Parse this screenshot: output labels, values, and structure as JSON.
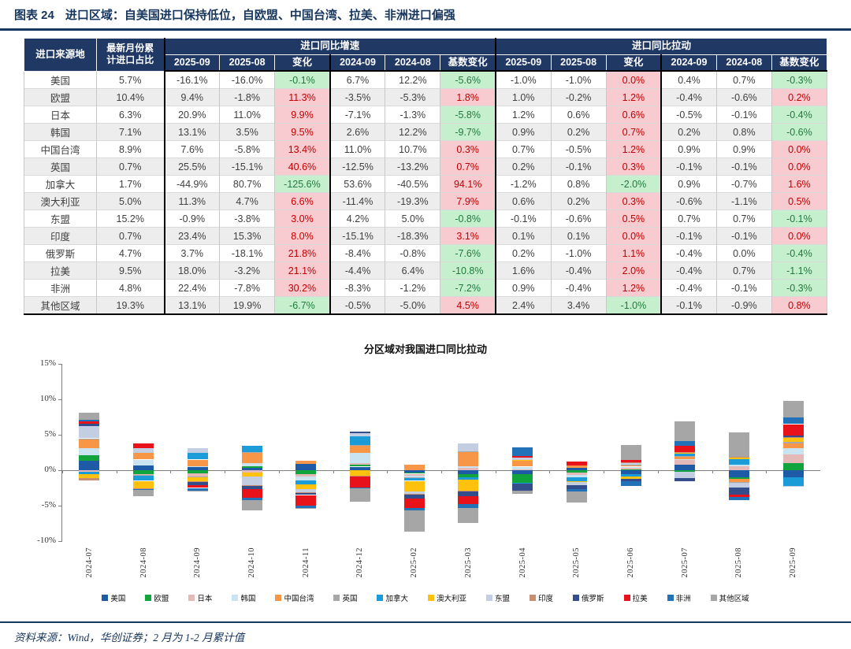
{
  "title": {
    "label": "图表 24",
    "text": "进口区域：自美国进口保持低位，自欧盟、中国台湾、拉美、非洲进口偏强"
  },
  "table": {
    "col_region": "进口来源地",
    "col_share": "最新月份累\n计进口占比",
    "group_growth": "进口同比增速",
    "group_pull": "进口同比拉动",
    "sub_headers": [
      "2025-09",
      "2025-08",
      "变化",
      "2024-09",
      "2024-08",
      "基数变化"
    ],
    "rows": [
      {
        "name": "美国",
        "share": "5.7%",
        "growth": [
          "-16.1%",
          "-16.0%",
          "-0.1%",
          "6.7%",
          "12.2%",
          "-5.6%"
        ],
        "pull": [
          "-1.0%",
          "-1.0%",
          "0.0%",
          "0.4%",
          "0.7%",
          "-0.3%"
        ]
      },
      {
        "name": "欧盟",
        "share": "10.4%",
        "growth": [
          "9.4%",
          "-1.8%",
          "11.3%",
          "-3.5%",
          "-5.3%",
          "1.8%"
        ],
        "pull": [
          "1.0%",
          "-0.2%",
          "1.2%",
          "-0.4%",
          "-0.6%",
          "0.2%"
        ]
      },
      {
        "name": "日本",
        "share": "6.3%",
        "growth": [
          "20.9%",
          "11.0%",
          "9.9%",
          "-7.1%",
          "-1.3%",
          "-5.8%"
        ],
        "pull": [
          "1.2%",
          "0.6%",
          "0.6%",
          "-0.5%",
          "-0.1%",
          "-0.4%"
        ]
      },
      {
        "name": "韩国",
        "share": "7.1%",
        "growth": [
          "13.1%",
          "3.5%",
          "9.5%",
          "2.6%",
          "12.2%",
          "-9.7%"
        ],
        "pull": [
          "0.9%",
          "0.2%",
          "0.7%",
          "0.2%",
          "0.8%",
          "-0.6%"
        ]
      },
      {
        "name": "中国台湾",
        "share": "8.9%",
        "growth": [
          "7.6%",
          "-5.8%",
          "13.4%",
          "11.0%",
          "10.7%",
          "0.3%"
        ],
        "pull": [
          "0.7%",
          "-0.5%",
          "1.2%",
          "0.9%",
          "0.9%",
          "0.0%"
        ]
      },
      {
        "name": "英国",
        "share": "0.7%",
        "growth": [
          "25.5%",
          "-15.1%",
          "40.6%",
          "-12.5%",
          "-13.2%",
          "0.7%"
        ],
        "pull": [
          "0.2%",
          "-0.1%",
          "0.3%",
          "-0.1%",
          "-0.1%",
          "0.0%"
        ]
      },
      {
        "name": "加拿大",
        "share": "1.7%",
        "growth": [
          "-44.9%",
          "80.7%",
          "-125.6%",
          "53.6%",
          "-40.5%",
          "94.1%"
        ],
        "pull": [
          "-1.2%",
          "0.8%",
          "-2.0%",
          "0.9%",
          "-0.7%",
          "1.6%"
        ]
      },
      {
        "name": "澳大利亚",
        "share": "5.0%",
        "growth": [
          "11.3%",
          "4.7%",
          "6.6%",
          "-11.4%",
          "-19.3%",
          "7.9%"
        ],
        "pull": [
          "0.6%",
          "0.2%",
          "0.3%",
          "-0.6%",
          "-1.1%",
          "0.5%"
        ]
      },
      {
        "name": "东盟",
        "share": "15.2%",
        "growth": [
          "-0.9%",
          "-3.8%",
          "3.0%",
          "4.2%",
          "5.0%",
          "-0.8%"
        ],
        "pull": [
          "-0.1%",
          "-0.6%",
          "0.5%",
          "0.7%",
          "0.7%",
          "-0.1%"
        ]
      },
      {
        "name": "印度",
        "share": "0.7%",
        "growth": [
          "23.4%",
          "15.3%",
          "8.0%",
          "-15.1%",
          "-18.3%",
          "3.1%"
        ],
        "pull": [
          "0.1%",
          "0.1%",
          "0.0%",
          "-0.1%",
          "-0.1%",
          "0.0%"
        ]
      },
      {
        "name": "俄罗斯",
        "share": "4.7%",
        "growth": [
          "3.7%",
          "-18.1%",
          "21.8%",
          "-8.4%",
          "-0.8%",
          "-7.6%"
        ],
        "pull": [
          "0.2%",
          "-1.0%",
          "1.1%",
          "-0.4%",
          "0.0%",
          "-0.4%"
        ]
      },
      {
        "name": "拉美",
        "share": "9.5%",
        "growth": [
          "18.0%",
          "-3.2%",
          "21.1%",
          "-4.4%",
          "6.4%",
          "-10.8%"
        ],
        "pull": [
          "1.6%",
          "-0.4%",
          "2.0%",
          "-0.4%",
          "0.7%",
          "-1.1%"
        ]
      },
      {
        "name": "非洲",
        "share": "4.8%",
        "growth": [
          "22.4%",
          "-7.8%",
          "30.2%",
          "-8.3%",
          "-1.2%",
          "-7.2%"
        ],
        "pull": [
          "0.9%",
          "-0.4%",
          "1.2%",
          "-0.4%",
          "-0.1%",
          "-0.3%"
        ]
      },
      {
        "name": "其他区域",
        "share": "19.3%",
        "growth": [
          "13.1%",
          "19.9%",
          "-6.7%",
          "-0.5%",
          "-5.0%",
          "4.5%"
        ],
        "pull": [
          "2.4%",
          "3.4%",
          "-1.0%",
          "-0.1%",
          "-0.9%",
          "0.8%"
        ]
      }
    ]
  },
  "chart_data": {
    "type": "bar",
    "stacked": true,
    "title": "分区域对我国进口同比拉动",
    "unit": "%",
    "grid": false,
    "legend_position": "bottom",
    "ylim": [
      -10,
      15
    ],
    "yticks": [
      15,
      10,
      5,
      0,
      -5,
      -10
    ],
    "ytick_labels": [
      "15%",
      "10%",
      "5%",
      "0%",
      "-5%",
      "-10%"
    ],
    "categories": [
      "2024-07",
      "2024-08",
      "2024-09",
      "2024-10",
      "2024-11",
      "2024-12",
      "2025-02",
      "2025-03",
      "2025-04",
      "2025-05",
      "2025-06",
      "2025-07",
      "2025-08",
      "2025-09"
    ],
    "series": [
      {
        "name": "美国",
        "color": "#1F5AA7",
        "values": [
          1.3,
          0.7,
          0.4,
          0.3,
          0.9,
          0.5,
          -0.3,
          -0.5,
          -0.5,
          0.3,
          -0.6,
          0.8,
          -1.0,
          -1.0
        ]
      },
      {
        "name": "欧盟",
        "color": "#12A43C",
        "values": [
          0.8,
          -0.6,
          -0.4,
          0.3,
          -0.5,
          0.3,
          -0.2,
          -0.5,
          -1.3,
          -0.3,
          0.1,
          -0.2,
          -0.2,
          1.0
        ]
      },
      {
        "name": "日本",
        "color": "#E4B9B8",
        "values": [
          -0.2,
          -0.1,
          -0.5,
          -0.3,
          -0.4,
          0.2,
          -0.3,
          0.3,
          0.1,
          -0.4,
          0.3,
          0.6,
          0.6,
          1.2
        ]
      },
      {
        "name": "韩国",
        "color": "#C9E3F0",
        "values": [
          1.0,
          0.8,
          0.2,
          0.4,
          -0.5,
          1.5,
          -0.2,
          0.3,
          0.4,
          -0.3,
          0.1,
          0.2,
          0.2,
          0.9
        ]
      },
      {
        "name": "中国台湾",
        "color": "#F79646",
        "values": [
          1.3,
          0.9,
          0.9,
          1.5,
          0.4,
          1.0,
          0.8,
          2.0,
          0.8,
          0.4,
          0.2,
          0.3,
          -0.5,
          0.7
        ]
      },
      {
        "name": "英国",
        "color": "#A8A8A8",
        "values": [
          0.1,
          -0.1,
          -0.1,
          0.1,
          0.0,
          0.1,
          -0.1,
          0.1,
          0.0,
          0.0,
          0.1,
          0.1,
          -0.1,
          0.2
        ]
      },
      {
        "name": "加拿大",
        "color": "#1B9CD8",
        "values": [
          -0.4,
          -0.7,
          0.9,
          0.8,
          -0.6,
          1.2,
          -0.4,
          -0.3,
          -0.1,
          -0.5,
          -0.3,
          0.3,
          0.8,
          -1.2
        ]
      },
      {
        "name": "澳大利亚",
        "color": "#FEC10D",
        "values": [
          -0.5,
          -1.1,
          -0.6,
          -0.6,
          -0.7,
          -0.8,
          -1.5,
          -1.6,
          0.1,
          -0.2,
          -0.3,
          0.2,
          0.2,
          0.6
        ]
      },
      {
        "name": "东盟",
        "color": "#C4CEE2",
        "values": [
          1.7,
          0.7,
          0.7,
          -1.2,
          -0.4,
          0.4,
          -0.3,
          1.1,
          0.4,
          -0.4,
          0.2,
          -0.9,
          -0.6,
          -0.1
        ]
      },
      {
        "name": "印度",
        "color": "#C78E71",
        "values": [
          -0.3,
          -0.1,
          -0.1,
          -0.1,
          -0.1,
          -0.1,
          -0.1,
          -0.1,
          0.0,
          0.0,
          0.1,
          0.1,
          0.1,
          0.1
        ]
      },
      {
        "name": "俄罗斯",
        "color": "#344E8C",
        "values": [
          0.4,
          0.0,
          -0.4,
          -0.5,
          -0.3,
          0.3,
          -0.6,
          -0.7,
          -1.0,
          -0.6,
          -0.4,
          -0.5,
          -1.0,
          0.2
        ]
      },
      {
        "name": "拉美",
        "color": "#E8121B",
        "values": [
          0.3,
          0.7,
          -0.4,
          -1.2,
          -1.5,
          -1.5,
          -1.3,
          -1.1,
          0.2,
          0.5,
          0.3,
          0.8,
          -0.4,
          1.6
        ]
      },
      {
        "name": "非洲",
        "color": "#2272BA",
        "values": [
          0.2,
          -0.1,
          -0.4,
          -0.3,
          -0.3,
          -0.2,
          -0.4,
          -0.5,
          1.2,
          -0.3,
          -0.6,
          0.7,
          -0.4,
          0.9
        ]
      },
      {
        "name": "其他区域",
        "color": "#A6A6A6",
        "values": [
          1.0,
          -0.9,
          -0.1,
          -1.5,
          -0.2,
          -1.9,
          -3.0,
          -2.2,
          -0.4,
          -1.5,
          2.2,
          2.8,
          3.4,
          2.4
        ]
      }
    ]
  },
  "footer": {
    "text": "资料来源：Wind，华创证券；2 月为 1-2 月累计值"
  },
  "colors": {
    "accent_navy": "#1F3864",
    "positive_bg": "#F8CBD0",
    "positive_text": "#C00000",
    "negative_bg": "#C6EFCE",
    "negative_text": "#217A3C"
  }
}
